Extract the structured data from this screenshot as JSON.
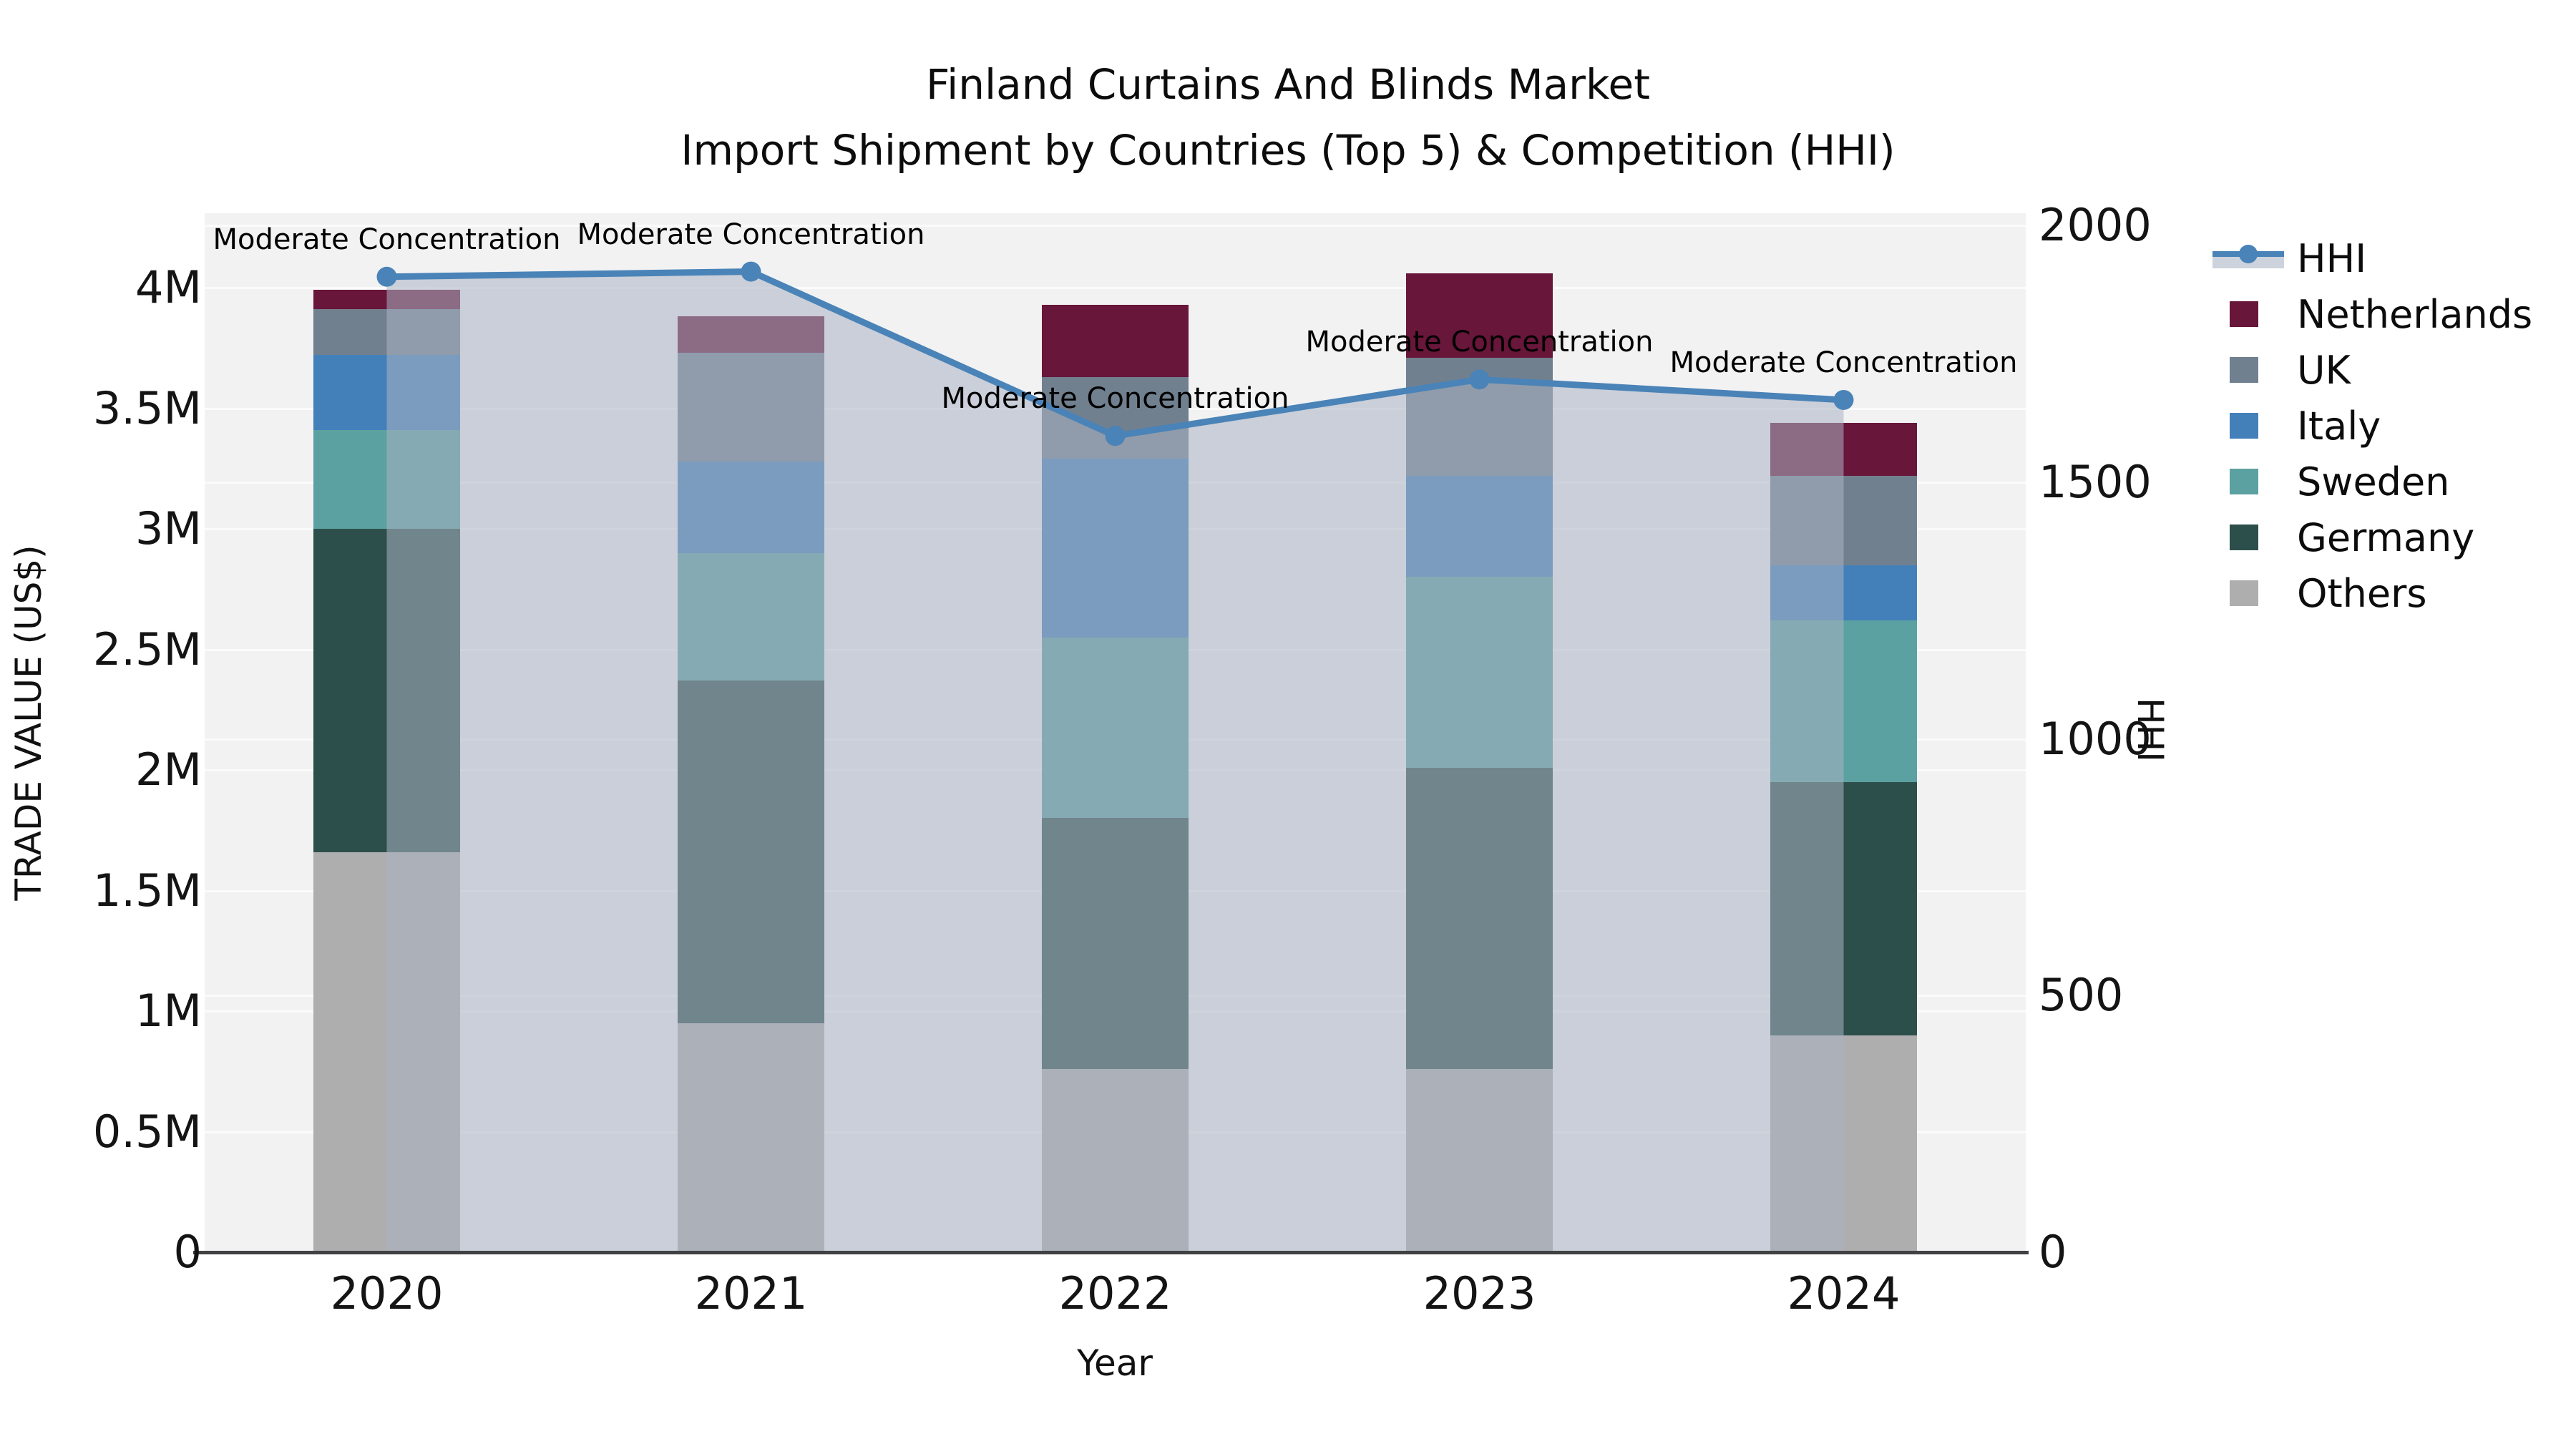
{
  "title": {
    "line1": "Finland Curtains And Blinds Market",
    "line2": "Import Shipment by Countries (Top 5) & Competition (HHI)"
  },
  "axes": {
    "left": {
      "title": "TRADE VALUE (US$)",
      "ticks": [
        {
          "label": "0",
          "value": 0
        },
        {
          "label": "0.5M",
          "value": 0.5
        },
        {
          "label": "1M",
          "value": 1
        },
        {
          "label": "1.5M",
          "value": 1.5
        },
        {
          "label": "2M",
          "value": 2
        },
        {
          "label": "2.5M",
          "value": 2.5
        },
        {
          "label": "3M",
          "value": 3
        },
        {
          "label": "3.5M",
          "value": 3.5
        },
        {
          "label": "4M",
          "value": 4
        }
      ]
    },
    "right": {
      "title": "HHI",
      "ticks": [
        {
          "label": "0",
          "value": 0
        },
        {
          "label": "500",
          "value": 500
        },
        {
          "label": "1000",
          "value": 1000
        },
        {
          "label": "1500",
          "value": 1500
        },
        {
          "label": "2000",
          "value": 2000
        }
      ],
      "max": 2000
    },
    "x": {
      "title": "Year"
    }
  },
  "legend": {
    "items": [
      {
        "label": "HHI",
        "type": "line",
        "color": "#4a83b7",
        "band_color": "#ccd3dc"
      },
      {
        "label": "Netherlands",
        "type": "swatch",
        "color": "#68163a"
      },
      {
        "label": "UK",
        "type": "swatch",
        "color": "#71808f"
      },
      {
        "label": "Italy",
        "type": "swatch",
        "color": "#4380b9"
      },
      {
        "label": "Sweden",
        "type": "swatch",
        "color": "#5ca1a1"
      },
      {
        "label": "Germany",
        "type": "swatch",
        "color": "#2d4f4b"
      },
      {
        "label": "Others",
        "type": "swatch",
        "color": "#aeaeae"
      }
    ]
  },
  "colors": {
    "plot_bg": "#f2f2f3",
    "gridline": "#fbfbfb",
    "axis_line": "#414144",
    "hhi_line": "#4a83b7",
    "hhi_fill": "rgba(170,178,194,0.55)"
  },
  "chart_data": {
    "type": "bar",
    "subtype": "stacked-bars-with-line-on-secondary-axis",
    "title": "Finland Curtains And Blinds Market — Import Shipment by Countries (Top 5) & Competition (HHI)",
    "xlabel": "Year",
    "ylabel_left": "TRADE VALUE (US$)",
    "ylabel_right": "HHI",
    "categories": [
      "2020",
      "2021",
      "2022",
      "2023",
      "2024"
    ],
    "bar_unit": "US$ millions",
    "stack_order_bottom_to_top": [
      "Others",
      "Germany",
      "Sweden",
      "Italy",
      "UK",
      "Netherlands"
    ],
    "series": [
      {
        "name": "Others",
        "color": "#aeaeae",
        "values": [
          1.66,
          0.95,
          0.76,
          0.76,
          0.9
        ]
      },
      {
        "name": "Germany",
        "color": "#2d4f4b",
        "values": [
          1.34,
          1.42,
          1.04,
          1.25,
          1.05
        ]
      },
      {
        "name": "Sweden",
        "color": "#5ca1a1",
        "values": [
          0.41,
          0.53,
          0.75,
          0.79,
          0.67
        ]
      },
      {
        "name": "Italy",
        "color": "#4380b9",
        "values": [
          0.31,
          0.38,
          0.74,
          0.42,
          0.23
        ]
      },
      {
        "name": "UK",
        "color": "#71808f",
        "values": [
          0.19,
          0.45,
          0.34,
          0.49,
          0.37
        ]
      },
      {
        "name": "Netherlands",
        "color": "#68163a",
        "values": [
          0.08,
          0.15,
          0.3,
          0.35,
          0.22
        ]
      }
    ],
    "bar_totals_millions": [
      3.99,
      3.88,
      3.93,
      4.06,
      3.44
    ],
    "line_series": {
      "name": "HHI",
      "axis": "right",
      "color": "#4a83b7",
      "area_fill": "rgba(170,178,194,0.55)",
      "values": [
        1900,
        1910,
        1590,
        1700,
        1660
      ]
    },
    "annotations": [
      {
        "text": "Moderate Concentration",
        "category": "2020"
      },
      {
        "text": "Moderate Concentration",
        "category": "2021"
      },
      {
        "text": "Moderate Concentration",
        "category": "2022"
      },
      {
        "text": "Moderate Concentration",
        "category": "2023"
      },
      {
        "text": "Moderate Concentration",
        "category": "2024"
      }
    ],
    "ylim_left_millions": [
      0,
      4.31
    ],
    "ylim_right": [
      0,
      2000
    ],
    "grid": true,
    "legend_position": "right"
  }
}
